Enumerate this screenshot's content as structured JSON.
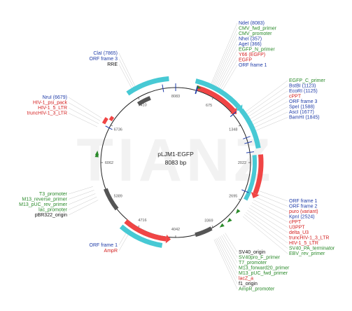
{
  "plasmid": {
    "name": "pLJM1-EGFP",
    "size_label": "8083 bp",
    "length": 8083
  },
  "watermark": "TIANZ",
  "colors": {
    "blue": "#1f3ca8",
    "green": "#2a8a2a",
    "red": "#d42020",
    "black": "#111111",
    "cyan": "#47c9d4",
    "orf_red": "#f04545",
    "grey": "#555555",
    "leader": "#bbbbbb"
  },
  "ticks": [
    "675",
    "1348",
    "2022",
    "2695",
    "3369",
    "4042",
    "4716",
    "5389",
    "6062",
    "6736",
    "7410",
    "8083"
  ],
  "label_groups": [
    {
      "side": "right",
      "anchor": "start",
      "x": 341,
      "y0": 35,
      "dy": 7.5,
      "items": [
        {
          "text": "NdeI (8083)",
          "color": "blue"
        },
        {
          "text": "CMV_fwd_primer",
          "color": "green"
        },
        {
          "text": "CMV_promoter",
          "color": "green"
        },
        {
          "text": "NheI (357)",
          "color": "blue"
        },
        {
          "text": "AgeI (366)",
          "color": "blue"
        },
        {
          "text": "EGFP_N_primer",
          "color": "green"
        },
        {
          "text": "Y66 (EGFP)",
          "color": "red"
        },
        {
          "text": "EGFP",
          "color": "red"
        },
        {
          "text": "ORF frame 1",
          "color": "blue"
        }
      ]
    },
    {
      "side": "right",
      "anchor": "start",
      "x": 413,
      "y0": 117,
      "dy": 7.5,
      "items": [
        {
          "text": "EGFP_C_primer",
          "color": "green"
        },
        {
          "text": "BstBI (1123)",
          "color": "blue"
        },
        {
          "text": "EcoRI (1125)",
          "color": "blue"
        },
        {
          "text": "cPPT",
          "color": "red"
        },
        {
          "text": "ORF frame 3",
          "color": "blue"
        },
        {
          "text": "SpeI (1588)",
          "color": "blue"
        },
        {
          "text": "AscI (1677)",
          "color": "blue"
        },
        {
          "text": "BamHI (1845)",
          "color": "blue"
        }
      ]
    },
    {
      "side": "right",
      "anchor": "start",
      "x": 413,
      "y0": 289,
      "dy": 7.5,
      "items": [
        {
          "text": "ORF frame 1",
          "color": "blue"
        },
        {
          "text": "ORF frame 2",
          "color": "blue"
        },
        {
          "text": "puro (variant)",
          "color": "red"
        },
        {
          "text": "KpnI (2524)",
          "color": "blue"
        },
        {
          "text": "cPPT",
          "color": "red"
        },
        {
          "text": "U3PPT",
          "color": "red"
        },
        {
          "text": "delta_U3",
          "color": "red"
        },
        {
          "text": "truncHIV-1_3_LTR",
          "color": "red"
        },
        {
          "text": "HIV-1_5_LTR",
          "color": "red"
        },
        {
          "text": "SV40_PA_terminator",
          "color": "green"
        },
        {
          "text": "EBV_rev_primer",
          "color": "green"
        }
      ]
    },
    {
      "side": "bottom",
      "anchor": "start",
      "x": 341,
      "y0": 362,
      "dy": 7.5,
      "items": [
        {
          "text": "SV40_origin",
          "color": "black"
        },
        {
          "text": "SV40pro_F_primer",
          "color": "green"
        },
        {
          "text": "T7_promoter",
          "color": "green"
        },
        {
          "text": "M13_forward20_primer",
          "color": "green"
        },
        {
          "text": "M13_pUC_fwd_primer",
          "color": "green"
        },
        {
          "text": "lacZ_a",
          "color": "red"
        },
        {
          "text": "f1_origin",
          "color": "black"
        },
        {
          "text": "AmpR_promoter",
          "color": "green"
        }
      ]
    },
    {
      "side": "bottom-left",
      "anchor": "end",
      "x": 168,
      "y0": 352,
      "dy": 8,
      "items": [
        {
          "text": "ORF frame 1",
          "color": "blue"
        },
        {
          "text": "AmpR",
          "color": "red"
        }
      ]
    },
    {
      "side": "left",
      "anchor": "end",
      "x": 96,
      "y0": 279,
      "dy": 7.5,
      "items": [
        {
          "text": "T3_promoter",
          "color": "green"
        },
        {
          "text": "M13_reverse_primer",
          "color": "green"
        },
        {
          "text": "M13_pUC_rev_primer",
          "color": "green"
        },
        {
          "text": "lac_promoter",
          "color": "green"
        },
        {
          "text": "pBR322_origin",
          "color": "black"
        }
      ]
    },
    {
      "side": "left",
      "anchor": "end",
      "x": 96,
      "y0": 141,
      "dy": 7.5,
      "items": [
        {
          "text": "NruI (6679)",
          "color": "blue"
        },
        {
          "text": "HIV-1_psi_pack",
          "color": "red"
        },
        {
          "text": "HIV-1_5_LTR",
          "color": "red"
        },
        {
          "text": "truncHIV-1_3_LTR",
          "color": "red"
        }
      ]
    },
    {
      "side": "top-left",
      "anchor": "end",
      "x": 168,
      "y0": 78,
      "dy": 8,
      "items": [
        {
          "text": "ClaI (7865)",
          "color": "blue"
        },
        {
          "text": "ORF frame 3",
          "color": "blue"
        },
        {
          "text": "RRE",
          "color": "black"
        }
      ]
    }
  ]
}
